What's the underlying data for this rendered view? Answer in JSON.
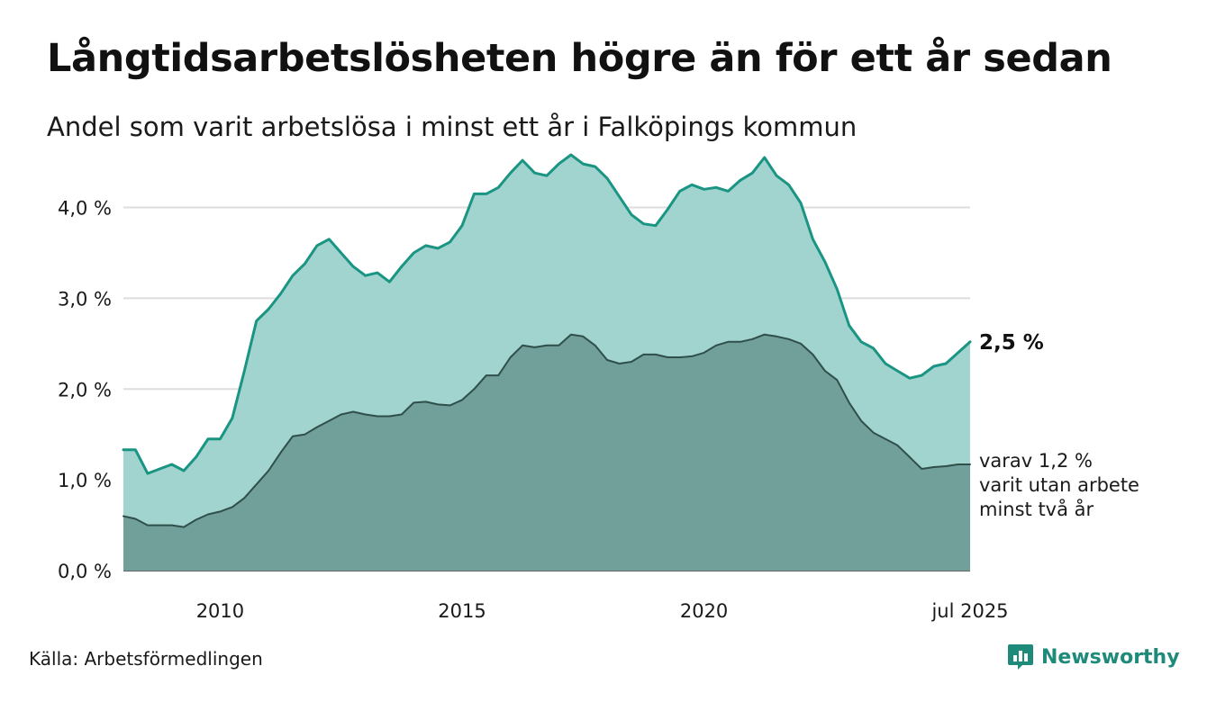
{
  "title": "Långtidsarbetslösheten högre än för ett år sedan",
  "subtitle": "Andel som varit arbetslösa i minst ett år i Falköpings kommun",
  "source": "Källa: Arbetsförmedlingen",
  "brand": {
    "name": "Newsworthy",
    "icon": "newsworthy-logo-icon",
    "color": "#1d8a7a"
  },
  "colors": {
    "upper_line": "#1a9483",
    "upper_fill": "#a1d4ce",
    "lower_line": "#2f4f4a",
    "lower_fill": "#719f99",
    "grid": "#dddddd"
  },
  "chart_data": {
    "type": "area",
    "title": "Långtidsarbetslösheten högre än för ett år sedan",
    "subtitle": "Andel som varit arbetslösa i minst ett år i Falköpings kommun",
    "xlabel": "",
    "ylabel": "",
    "ylim": [
      0,
      4.6
    ],
    "xlim": [
      "2008-01",
      "2025-07"
    ],
    "grid": true,
    "legend": "none",
    "y_ticks": [
      {
        "value": 0,
        "label": "0,0 %"
      },
      {
        "value": 1,
        "label": "1,0 %"
      },
      {
        "value": 2,
        "label": "2,0 %"
      },
      {
        "value": 3,
        "label": "3,0 %"
      },
      {
        "value": 4,
        "label": "4,0 %"
      }
    ],
    "x_ticks": [
      {
        "value": "2010-01",
        "label": "2010"
      },
      {
        "value": "2015-01",
        "label": "2015"
      },
      {
        "value": "2020-01",
        "label": "2020"
      },
      {
        "value": "2025-07",
        "label": "jul 2025"
      }
    ],
    "annotations": {
      "upper": "2,5 %",
      "lower_lines": [
        "varav 1,2 %",
        "varit utan arbete",
        "minst två år"
      ]
    },
    "series": [
      {
        "points": [
          [
            "2008-01",
            1.33
          ],
          [
            "2008-04",
            1.33
          ],
          [
            "2008-07",
            1.07
          ],
          [
            "2008-10",
            1.12
          ],
          [
            "2009-01",
            1.17
          ],
          [
            "2009-04",
            1.1
          ],
          [
            "2009-07",
            1.25
          ],
          [
            "2009-10",
            1.45
          ],
          [
            "2010-01",
            1.45
          ],
          [
            "2010-04",
            1.68
          ],
          [
            "2010-07",
            2.2
          ],
          [
            "2010-10",
            2.75
          ],
          [
            "2011-01",
            2.88
          ],
          [
            "2011-04",
            3.05
          ],
          [
            "2011-07",
            3.25
          ],
          [
            "2011-10",
            3.38
          ],
          [
            "2012-01",
            3.58
          ],
          [
            "2012-04",
            3.65
          ],
          [
            "2012-07",
            3.5
          ],
          [
            "2012-10",
            3.35
          ],
          [
            "2013-01",
            3.25
          ],
          [
            "2013-04",
            3.28
          ],
          [
            "2013-07",
            3.18
          ],
          [
            "2013-10",
            3.35
          ],
          [
            "2014-01",
            3.5
          ],
          [
            "2014-04",
            3.58
          ],
          [
            "2014-07",
            3.55
          ],
          [
            "2014-10",
            3.62
          ],
          [
            "2015-01",
            3.8
          ],
          [
            "2015-04",
            4.15
          ],
          [
            "2015-07",
            4.15
          ],
          [
            "2015-10",
            4.22
          ],
          [
            "2016-01",
            4.38
          ],
          [
            "2016-04",
            4.52
          ],
          [
            "2016-07",
            4.38
          ],
          [
            "2016-10",
            4.35
          ],
          [
            "2017-01",
            4.48
          ],
          [
            "2017-04",
            4.58
          ],
          [
            "2017-07",
            4.48
          ],
          [
            "2017-10",
            4.45
          ],
          [
            "2018-01",
            4.32
          ],
          [
            "2018-04",
            4.12
          ],
          [
            "2018-07",
            3.92
          ],
          [
            "2018-10",
            3.82
          ],
          [
            "2019-01",
            3.8
          ],
          [
            "2019-04",
            3.98
          ],
          [
            "2019-07",
            4.18
          ],
          [
            "2019-10",
            4.25
          ],
          [
            "2020-01",
            4.2
          ],
          [
            "2020-04",
            4.22
          ],
          [
            "2020-07",
            4.18
          ],
          [
            "2020-10",
            4.3
          ],
          [
            "2021-01",
            4.38
          ],
          [
            "2021-04",
            4.55
          ],
          [
            "2021-07",
            4.35
          ],
          [
            "2021-10",
            4.25
          ],
          [
            "2022-01",
            4.05
          ],
          [
            "2022-04",
            3.65
          ],
          [
            "2022-07",
            3.4
          ],
          [
            "2022-10",
            3.1
          ],
          [
            "2023-01",
            2.7
          ],
          [
            "2023-04",
            2.52
          ],
          [
            "2023-07",
            2.45
          ],
          [
            "2023-10",
            2.28
          ],
          [
            "2024-01",
            2.2
          ],
          [
            "2024-04",
            2.12
          ],
          [
            "2024-07",
            2.15
          ],
          [
            "2024-10",
            2.25
          ],
          [
            "2025-01",
            2.28
          ],
          [
            "2025-04",
            2.4
          ],
          [
            "2025-07",
            2.52
          ]
        ]
      },
      {
        "points": [
          [
            "2008-01",
            0.6
          ],
          [
            "2008-04",
            0.57
          ],
          [
            "2008-07",
            0.5
          ],
          [
            "2008-10",
            0.5
          ],
          [
            "2009-01",
            0.5
          ],
          [
            "2009-04",
            0.48
          ],
          [
            "2009-07",
            0.56
          ],
          [
            "2009-10",
            0.62
          ],
          [
            "2010-01",
            0.65
          ],
          [
            "2010-04",
            0.7
          ],
          [
            "2010-07",
            0.8
          ],
          [
            "2010-10",
            0.95
          ],
          [
            "2011-01",
            1.1
          ],
          [
            "2011-04",
            1.3
          ],
          [
            "2011-07",
            1.48
          ],
          [
            "2011-10",
            1.5
          ],
          [
            "2012-01",
            1.58
          ],
          [
            "2012-04",
            1.65
          ],
          [
            "2012-07",
            1.72
          ],
          [
            "2012-10",
            1.75
          ],
          [
            "2013-01",
            1.72
          ],
          [
            "2013-04",
            1.7
          ],
          [
            "2013-07",
            1.7
          ],
          [
            "2013-10",
            1.72
          ],
          [
            "2014-01",
            1.85
          ],
          [
            "2014-04",
            1.86
          ],
          [
            "2014-07",
            1.83
          ],
          [
            "2014-10",
            1.82
          ],
          [
            "2015-01",
            1.88
          ],
          [
            "2015-04",
            2.0
          ],
          [
            "2015-07",
            2.15
          ],
          [
            "2015-10",
            2.15
          ],
          [
            "2016-01",
            2.35
          ],
          [
            "2016-04",
            2.48
          ],
          [
            "2016-07",
            2.46
          ],
          [
            "2016-10",
            2.48
          ],
          [
            "2017-01",
            2.48
          ],
          [
            "2017-04",
            2.6
          ],
          [
            "2017-07",
            2.58
          ],
          [
            "2017-10",
            2.48
          ],
          [
            "2018-01",
            2.32
          ],
          [
            "2018-04",
            2.28
          ],
          [
            "2018-07",
            2.3
          ],
          [
            "2018-10",
            2.38
          ],
          [
            "2019-01",
            2.38
          ],
          [
            "2019-04",
            2.35
          ],
          [
            "2019-07",
            2.35
          ],
          [
            "2019-10",
            2.36
          ],
          [
            "2020-01",
            2.4
          ],
          [
            "2020-04",
            2.48
          ],
          [
            "2020-07",
            2.52
          ],
          [
            "2020-10",
            2.52
          ],
          [
            "2021-01",
            2.55
          ],
          [
            "2021-04",
            2.6
          ],
          [
            "2021-07",
            2.58
          ],
          [
            "2021-10",
            2.55
          ],
          [
            "2022-01",
            2.5
          ],
          [
            "2022-04",
            2.38
          ],
          [
            "2022-07",
            2.2
          ],
          [
            "2022-10",
            2.1
          ],
          [
            "2023-01",
            1.85
          ],
          [
            "2023-04",
            1.65
          ],
          [
            "2023-07",
            1.52
          ],
          [
            "2023-10",
            1.45
          ],
          [
            "2024-01",
            1.38
          ],
          [
            "2024-04",
            1.25
          ],
          [
            "2024-07",
            1.12
          ],
          [
            "2024-10",
            1.14
          ],
          [
            "2025-01",
            1.15
          ],
          [
            "2025-04",
            1.17
          ],
          [
            "2025-07",
            1.17
          ]
        ]
      }
    ]
  }
}
